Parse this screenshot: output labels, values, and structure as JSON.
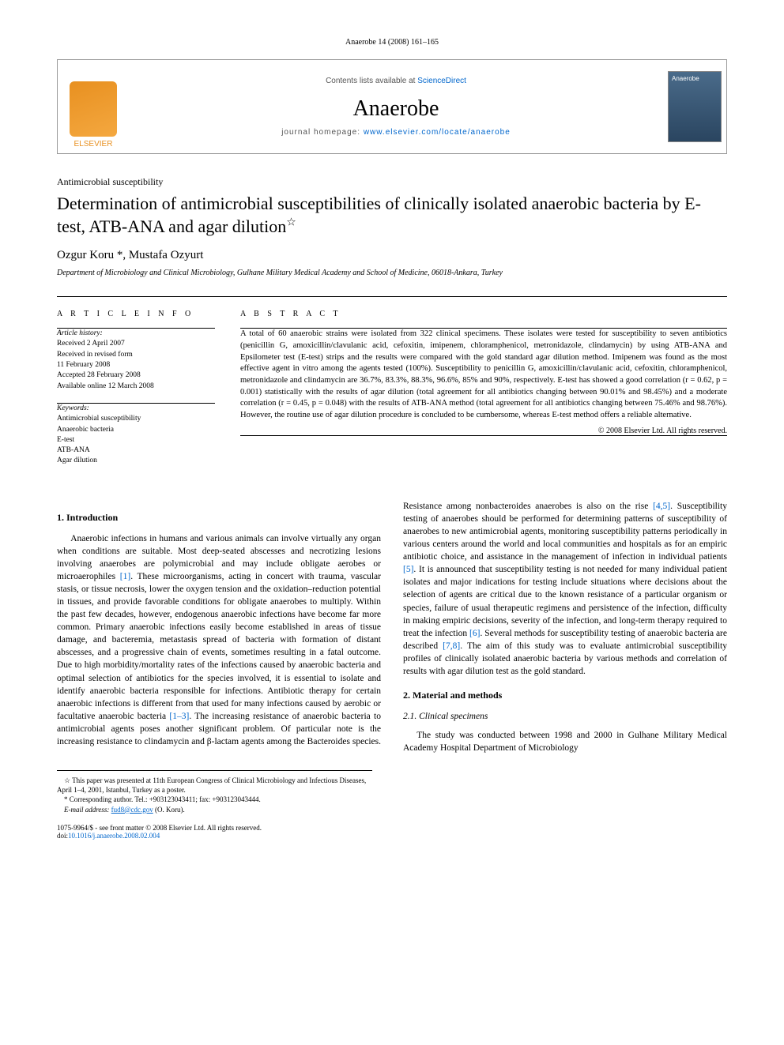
{
  "header": {
    "citation": "Anaerobe 14 (2008) 161–165"
  },
  "journalBox": {
    "publisher": "ELSEVIER",
    "contentsPrefix": "Contents lists available at ",
    "contentsLink": "ScienceDirect",
    "journalName": "Anaerobe",
    "homepagePrefix": "journal homepage: ",
    "homepageUrl": "www.elsevier.com/locate/anaerobe",
    "coverLabel": "Anaerobe"
  },
  "article": {
    "sectionLabel": "Antimicrobial susceptibility",
    "title": "Determination of antimicrobial susceptibilities of clinically isolated anaerobic bacteria by E-test, ATB-ANA and agar dilution",
    "starNote": "☆",
    "authors": "Ozgur Koru *, Mustafa Ozyurt",
    "affiliation": "Department of Microbiology and Clinical Microbiology, Gulhane Military Medical Academy and School of Medicine, 06018-Ankara, Turkey"
  },
  "info": {
    "heading": "A R T I C L E   I N F O",
    "historyLabel": "Article history:",
    "history": [
      "Received 2 April 2007",
      "Received in revised form",
      "11 February 2008",
      "Accepted 28 February 2008",
      "Available online 12 March 2008"
    ],
    "keywordsLabel": "Keywords:",
    "keywords": [
      "Antimicrobial susceptibility",
      "Anaerobic bacteria",
      "E-test",
      "ATB-ANA",
      "Agar dilution"
    ]
  },
  "abstract": {
    "heading": "A B S T R A C T",
    "text": "A total of 60 anaerobic strains were isolated from 322 clinical specimens. These isolates were tested for susceptibility to seven antibiotics (penicillin G, amoxicillin/clavulanic acid, cefoxitin, imipenem, chloramphenicol, metronidazole, clindamycin) by using ATB-ANA and Epsilometer test (E-test) strips and the results were compared with the gold standard agar dilution method. Imipenem was found as the most effective agent in vitro among the agents tested (100%). Susceptibility to penicillin G, amoxicillin/clavulanic acid, cefoxitin, chloramphenicol, metronidazole and clindamycin are 36.7%, 83.3%, 88.3%, 96.6%, 85% and 90%, respectively. E-test has showed a good correlation (r = 0.62, p = 0.001) statistically with the results of agar dilution (total agreement for all antibiotics changing between 90.01% and 98.45%) and a moderate correlation (r = 0.45, p = 0.048) with the results of ATB-ANA method (total agreement for all antibiotics changing between 75.46% and 98.76%). However, the routine use of agar dilution procedure is concluded to be cumbersome, whereas E-test method offers a reliable alternative.",
    "copyright": "© 2008 Elsevier Ltd. All rights reserved."
  },
  "body": {
    "s1_title": "1.  Introduction",
    "s1_p1a": "Anaerobic infections in humans and various animals can involve virtually any organ when conditions are suitable. Most deep-seated abscesses and necrotizing lesions involving anaerobes are polymicrobial and may include obligate aerobes or microaerophiles ",
    "s1_r1": "[1]",
    "s1_p1b": ". These microorganisms, acting in concert with trauma, vascular stasis, or tissue necrosis, lower the oxygen tension and the oxidation–reduction potential in tissues, and provide favorable conditions for obligate anaerobes to multiply. Within the past few decades, however, endogenous anaerobic infections have become far more common. Primary anaerobic infections easily become established in areas of tissue damage, and bacteremia, metastasis spread of bacteria with formation of distant abscesses, and a progressive chain of events, sometimes resulting in a fatal outcome. Due to high morbidity/mortality rates of the infections caused by anaerobic bacteria and optimal selection of antibiotics for the species involved, it is essential to isolate and identify anaerobic bacteria responsible for infections. Antibiotic therapy for certain anaerobic infections is different from that used for many infections caused by aerobic or facultative anaerobic bacteria ",
    "s1_r2": "[1–3]",
    "s1_p1c": ". The increasing resistance of anaerobic bacteria to antimicrobial agents poses another significant problem. Of particular note is the ",
    "s1_p1d": "increasing resistance to clindamycin and β-lactam agents among the Bacteroides species. Resistance among nonbacteroides anaerobes is also on the rise ",
    "s1_r3": "[4,5]",
    "s1_p1e": ". Susceptibility testing of anaerobes should be performed for determining patterns of susceptibility of anaerobes to new antimicrobial agents, monitoring susceptibility patterns periodically in various centers around the world and local communities and hospitals as for an empiric antibiotic choice, and assistance in the management of infection in individual patients ",
    "s1_r4": "[5]",
    "s1_p1f": ". It is announced that susceptibility testing is not needed for many individual patient isolates and major indications for testing include situations where decisions about the selection of agents are critical due to the known resistance of a particular organism or species, failure of usual therapeutic regimens and persistence of the infection, difficulty in making empiric decisions, severity of the infection, and long-term therapy required to treat the infection ",
    "s1_r5": "[6]",
    "s1_p1g": ". Several methods for susceptibility testing of anaerobic bacteria are described ",
    "s1_r6": "[7,8]",
    "s1_p1h": ". The aim of this study was to evaluate antimicrobial susceptibility profiles of clinically isolated anaerobic bacteria by various methods and correlation of results with agar dilution test as the gold standard.",
    "s2_title": "2.  Material and methods",
    "s2_1_title": "2.1.  Clinical specimens",
    "s2_1_p1": "The study was conducted between 1998 and 2000 in Gulhane Military Medical Academy Hospital Department of Microbiology"
  },
  "footnotes": {
    "star": "☆ This paper was presented at 11th European Congress of Clinical Microbiology and Infectious Diseases, April 1–4, 2001, Istanbul, Turkey as a poster.",
    "corr": "* Corresponding author. Tel.: +903123043411; fax: +903123043444.",
    "emailLabel": "E-mail address: ",
    "email": "fud8@cdc.gov",
    "emailSuffix": " (O. Koru).",
    "copyright": "1075-9964/$ - see front matter © 2008 Elsevier Ltd. All rights reserved.",
    "doiLabel": "doi:",
    "doi": "10.1016/j.anaerobe.2008.02.004"
  },
  "colors": {
    "link": "#0066cc",
    "elsevier": "#e89020",
    "coverBg": "#2a4560"
  }
}
